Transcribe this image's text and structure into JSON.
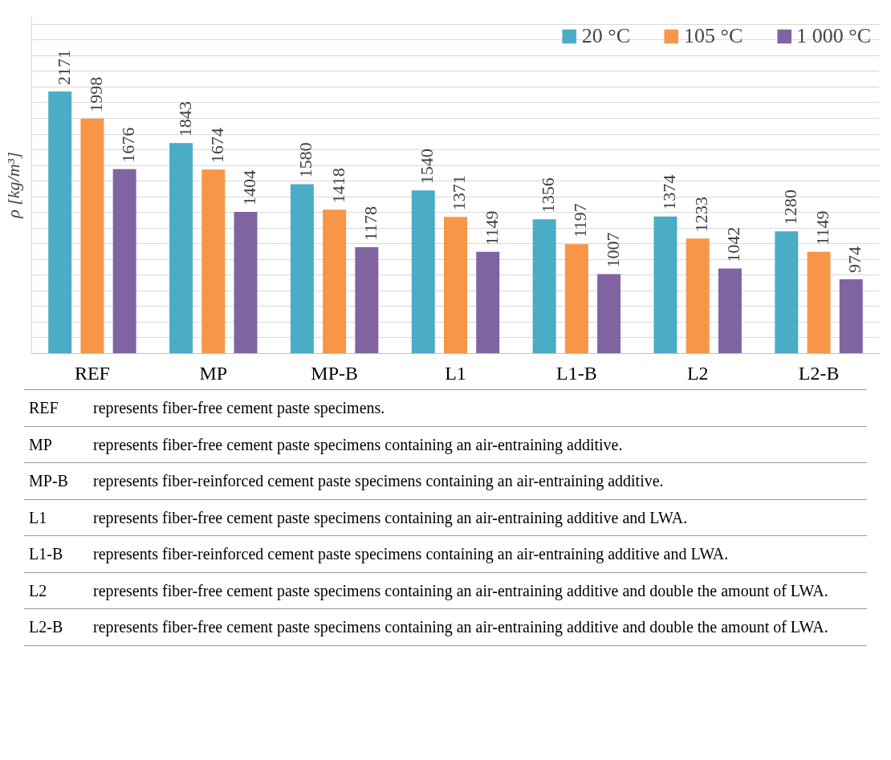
{
  "chart_data": {
    "type": "bar",
    "ylabel": "ρ [kg/m³]",
    "categories": [
      "REF",
      "MP",
      "MP-B",
      "L1",
      "L1-B",
      "L2",
      "L2-B"
    ],
    "series": [
      {
        "name": "20 °C",
        "color": "#4bacc6",
        "values": [
          2171,
          1843,
          1580,
          1540,
          1356,
          1374,
          1280
        ]
      },
      {
        "name": "105 °C",
        "color": "#f79646",
        "values": [
          1998,
          1674,
          1418,
          1371,
          1197,
          1233,
          1149
        ]
      },
      {
        "name": "1 000 °C",
        "color": "#8064a2",
        "values": [
          1676,
          1404,
          1178,
          1149,
          1007,
          1042,
          974
        ]
      }
    ],
    "ylim": [
      500,
      2650
    ],
    "yticks": [
      {
        "value": 600,
        "label": null
      },
      {
        "value": 700,
        "label": null
      },
      {
        "value": 800,
        "label": null
      },
      {
        "value": 900,
        "label": null
      },
      {
        "value": 1000,
        "label": null
      },
      {
        "value": 1100,
        "label": null
      },
      {
        "value": 1200,
        "label": null
      },
      {
        "value": 1300,
        "label": null
      },
      {
        "value": 1400,
        "label": null
      },
      {
        "value": 1500,
        "label": null
      },
      {
        "value": 1600,
        "label": null
      },
      {
        "value": 1700,
        "label": null
      },
      {
        "value": 1800,
        "label": null
      },
      {
        "value": 1900,
        "label": null
      },
      {
        "value": 2000,
        "label": null
      },
      {
        "value": 2100,
        "label": null
      },
      {
        "value": 2200,
        "label": null
      },
      {
        "value": 2300,
        "label": null
      },
      {
        "value": 2400,
        "label": null
      },
      {
        "value": 2500,
        "label": null
      },
      {
        "value": 2600,
        "label": null
      }
    ],
    "grid": "y",
    "legend": "top right",
    "data_labels": true,
    "tick_labels": "x",
    "annotations": [
      "REF represents fiber-free cement paste specimens.",
      "MP represents fiber-free cement paste specimens containing an air-entraining additive.",
      "MP-B represents fiber-reinforced cement paste specimens containing an air-entraining additive.",
      "L1 represents fiber-free cement paste specimens containing an air-entraining additive and LWA.",
      "L1-B represents fiber-reinforced cement paste specimens containing an air-entraining additive and LWA.",
      "L2 represents fiber-free cement paste specimens containing an air-entraining additive and double the amount of LWA.",
      "L2-B represents fiber-free cement paste specimens containing an air-entraining additive and double the amount of LWA."
    ]
  }
}
